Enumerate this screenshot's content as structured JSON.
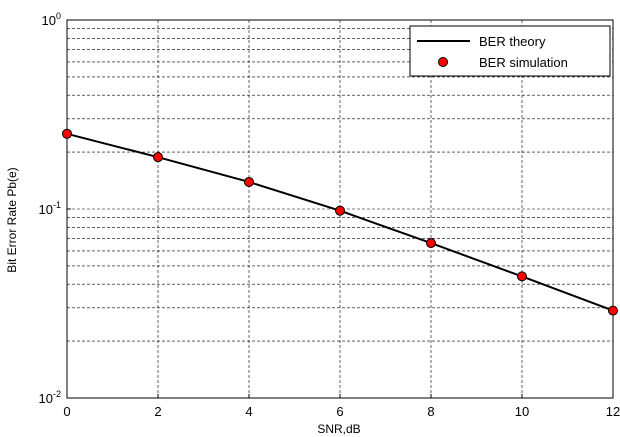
{
  "chart_data": {
    "type": "line",
    "title": "",
    "xlabel": "SNR,dB",
    "ylabel": "Bit Error Rate Pb(e)",
    "xlim": [
      0,
      12
    ],
    "ylim": [
      0.01,
      1
    ],
    "yscale": "log",
    "grid": true,
    "legend_position": "top-right",
    "x_ticks": [
      0,
      2,
      4,
      6,
      8,
      10,
      12
    ],
    "x_tick_labels": [
      "0",
      "2",
      "4",
      "6",
      "8",
      "10",
      "12"
    ],
    "y_ticks": [
      {
        "value": 1,
        "base": "10",
        "exp": "0"
      },
      {
        "value": 0.1,
        "base": "10",
        "exp": "-1"
      },
      {
        "value": 0.01,
        "base": "10",
        "exp": "-2"
      }
    ],
    "series": [
      {
        "name": "BER theory",
        "style": "line",
        "color": "#000000",
        "x": [
          0,
          2,
          4,
          6,
          8,
          10,
          12
        ],
        "y": [
          0.25,
          0.188,
          0.139,
          0.098,
          0.066,
          0.044,
          0.029
        ]
      },
      {
        "name": "BER simulation",
        "style": "marker",
        "color": "#ff0000",
        "x": [
          0,
          2,
          4,
          6,
          8,
          10,
          12
        ],
        "y": [
          0.25,
          0.188,
          0.139,
          0.098,
          0.066,
          0.044,
          0.029
        ]
      }
    ]
  }
}
